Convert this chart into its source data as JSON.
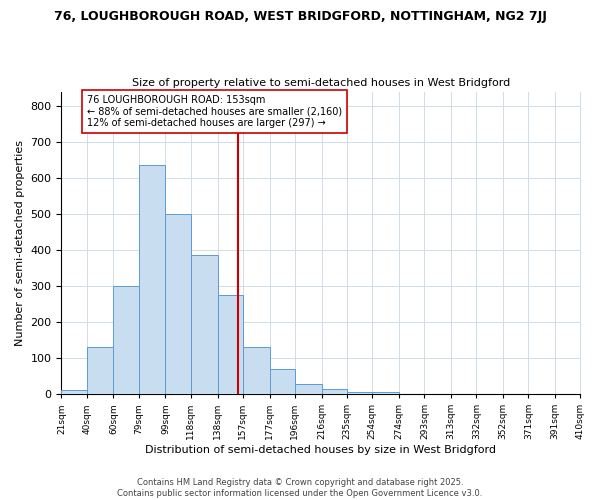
{
  "title": "76, LOUGHBOROUGH ROAD, WEST BRIDGFORD, NOTTINGHAM, NG2 7JJ",
  "subtitle": "Size of property relative to semi-detached houses in West Bridgford",
  "xlabel": "Distribution of semi-detached houses by size in West Bridgford",
  "ylabel": "Number of semi-detached properties",
  "bin_labels": [
    "21sqm",
    "40sqm",
    "60sqm",
    "79sqm",
    "99sqm",
    "118sqm",
    "138sqm",
    "157sqm",
    "177sqm",
    "196sqm",
    "216sqm",
    "235sqm",
    "254sqm",
    "274sqm",
    "293sqm",
    "313sqm",
    "332sqm",
    "352sqm",
    "371sqm",
    "391sqm",
    "410sqm"
  ],
  "bar_values": [
    10,
    130,
    300,
    635,
    500,
    385,
    275,
    130,
    70,
    27,
    13,
    7,
    5,
    0,
    0,
    0,
    0,
    0,
    0,
    0
  ],
  "bin_edges": [
    21,
    40,
    60,
    79,
    99,
    118,
    138,
    157,
    177,
    196,
    216,
    235,
    254,
    274,
    293,
    313,
    332,
    352,
    371,
    391,
    410
  ],
  "bar_color": "#c8ddf0",
  "bar_edge_color": "#5b9bd5",
  "property_size": 153,
  "vline_color": "#cc0000",
  "annotation_text": "76 LOUGHBOROUGH ROAD: 153sqm\n← 88% of semi-detached houses are smaller (2,160)\n12% of semi-detached houses are larger (297) →",
  "annotation_box_color": "#ffffff",
  "annotation_box_edge": "#cc0000",
  "ylim": [
    0,
    840
  ],
  "yticks": [
    0,
    100,
    200,
    300,
    400,
    500,
    600,
    700,
    800
  ],
  "footer_text": "Contains HM Land Registry data © Crown copyright and database right 2025.\nContains public sector information licensed under the Open Government Licence v3.0.",
  "bg_color": "#ffffff",
  "plot_bg_color": "#ffffff",
  "grid_color": "#d0dde8"
}
